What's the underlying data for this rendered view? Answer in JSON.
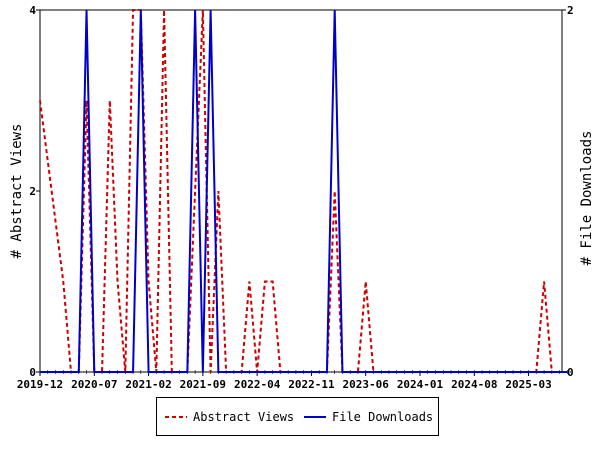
{
  "chart_data": {
    "type": "line",
    "xlabel": "",
    "ylabel_left": "# Abstract Views",
    "ylabel_right": "# File Downloads",
    "y_left_lim": [
      0,
      4
    ],
    "y_right_lim": [
      0,
      2
    ],
    "y_left_ticks": [
      "0",
      "2",
      "4"
    ],
    "y_right_ticks": [
      "0",
      "2"
    ],
    "x_ticks": [
      "2019-12",
      "2020-07",
      "2021-02",
      "2021-09",
      "2022-04",
      "2022-11",
      "2023-06",
      "2024-01",
      "2024-08",
      "2025-03"
    ],
    "x_start": "2019-12",
    "grid": false,
    "legend_position": "bottom",
    "series": [
      {
        "name": "Abstract Views",
        "axis": "left",
        "color": "#cc0000",
        "style": "dashed",
        "values": [
          [
            "2019-12",
            3
          ],
          [
            "2020-03",
            1
          ],
          [
            "2020-04",
            0
          ],
          [
            "2020-05",
            0
          ],
          [
            "2020-06",
            3
          ],
          [
            "2020-07",
            0
          ],
          [
            "2020-08",
            0
          ],
          [
            "2020-09",
            3
          ],
          [
            "2020-10",
            1
          ],
          [
            "2020-11",
            0
          ],
          [
            "2020-12",
            4
          ],
          [
            "2021-01",
            4
          ],
          [
            "2021-02",
            1
          ],
          [
            "2021-03",
            0
          ],
          [
            "2021-04",
            4
          ],
          [
            "2021-05",
            0
          ],
          [
            "2021-06",
            0
          ],
          [
            "2021-07",
            0
          ],
          [
            "2021-08",
            2
          ],
          [
            "2021-09",
            4
          ],
          [
            "2021-10",
            0
          ],
          [
            "2021-11",
            2
          ],
          [
            "2021-12",
            0
          ],
          [
            "2022-01",
            0
          ],
          [
            "2022-02",
            0
          ],
          [
            "2022-03",
            1
          ],
          [
            "2022-04",
            0
          ],
          [
            "2022-05",
            1
          ],
          [
            "2022-06",
            1
          ],
          [
            "2022-07",
            0
          ],
          [
            "2022-08",
            0
          ],
          [
            "2022-09",
            0
          ],
          [
            "2022-10",
            0
          ],
          [
            "2022-11",
            0
          ],
          [
            "2022-12",
            0
          ],
          [
            "2023-01",
            0
          ],
          [
            "2023-02",
            2
          ],
          [
            "2023-03",
            0
          ],
          [
            "2023-04",
            0
          ],
          [
            "2023-05",
            0
          ],
          [
            "2023-06",
            1
          ],
          [
            "2023-07",
            0
          ],
          [
            "2023-08",
            0
          ],
          [
            "2023-09",
            0
          ],
          [
            "2023-10",
            0
          ],
          [
            "2023-11",
            0
          ],
          [
            "2023-12",
            0
          ],
          [
            "2024-01",
            0
          ],
          [
            "2024-02",
            0
          ],
          [
            "2024-03",
            0
          ],
          [
            "2024-04",
            0
          ],
          [
            "2024-05",
            0
          ],
          [
            "2024-06",
            0
          ],
          [
            "2024-07",
            0
          ],
          [
            "2024-08",
            0
          ],
          [
            "2024-09",
            0
          ],
          [
            "2024-10",
            0
          ],
          [
            "2024-11",
            0
          ],
          [
            "2024-12",
            0
          ],
          [
            "2025-01",
            0
          ],
          [
            "2025-02",
            0
          ],
          [
            "2025-03",
            0
          ],
          [
            "2025-04",
            0
          ],
          [
            "2025-05",
            1
          ],
          [
            "2025-06",
            0
          ],
          [
            "2025-07",
            0
          ],
          [
            "2025-08",
            0
          ]
        ]
      },
      {
        "name": "File Downloads",
        "axis": "right",
        "color": "#0000cc",
        "style": "solid",
        "values": [
          [
            "2019-12",
            0
          ],
          [
            "2020-04",
            0
          ],
          [
            "2020-05",
            0
          ],
          [
            "2020-06",
            2
          ],
          [
            "2020-07",
            0
          ],
          [
            "2020-08",
            0
          ],
          [
            "2020-09",
            0
          ],
          [
            "2020-10",
            0
          ],
          [
            "2020-11",
            0
          ],
          [
            "2020-12",
            0
          ],
          [
            "2021-01",
            2
          ],
          [
            "2021-02",
            0
          ],
          [
            "2021-03",
            0
          ],
          [
            "2021-04",
            0
          ],
          [
            "2021-05",
            0
          ],
          [
            "2021-06",
            0
          ],
          [
            "2021-07",
            0
          ],
          [
            "2021-08",
            2
          ],
          [
            "2021-09",
            0
          ],
          [
            "2021-10",
            2
          ],
          [
            "2021-11",
            0
          ],
          [
            "2021-12",
            0
          ],
          [
            "2022-01",
            0
          ],
          [
            "2022-02",
            0
          ],
          [
            "2022-03",
            0
          ],
          [
            "2022-04",
            0
          ],
          [
            "2022-05",
            0
          ],
          [
            "2022-06",
            0
          ],
          [
            "2022-07",
            0
          ],
          [
            "2022-08",
            0
          ],
          [
            "2022-09",
            0
          ],
          [
            "2022-10",
            0
          ],
          [
            "2022-11",
            0
          ],
          [
            "2022-12",
            0
          ],
          [
            "2023-01",
            0
          ],
          [
            "2023-02",
            2
          ],
          [
            "2023-03",
            0
          ],
          [
            "2023-04",
            0
          ],
          [
            "2023-05",
            0
          ],
          [
            "2023-06",
            0
          ],
          [
            "2023-07",
            0
          ],
          [
            "2023-08",
            0
          ],
          [
            "2023-09",
            0
          ],
          [
            "2023-10",
            0
          ],
          [
            "2023-11",
            0
          ],
          [
            "2023-12",
            0
          ],
          [
            "2024-01",
            0
          ],
          [
            "2024-02",
            0
          ],
          [
            "2024-03",
            0
          ],
          [
            "2024-04",
            0
          ],
          [
            "2024-05",
            0
          ],
          [
            "2024-06",
            0
          ],
          [
            "2024-07",
            0
          ],
          [
            "2024-08",
            0
          ],
          [
            "2024-09",
            0
          ],
          [
            "2024-10",
            0
          ],
          [
            "2024-11",
            0
          ],
          [
            "2024-12",
            0
          ],
          [
            "2025-01",
            0
          ],
          [
            "2025-02",
            0
          ],
          [
            "2025-03",
            0
          ],
          [
            "2025-04",
            0
          ],
          [
            "2025-05",
            0
          ],
          [
            "2025-06",
            0
          ],
          [
            "2025-07",
            0
          ],
          [
            "2025-08",
            0
          ]
        ]
      }
    ]
  },
  "legend": {
    "abstract_views_label": "Abstract Views",
    "file_downloads_label": "File Downloads"
  }
}
